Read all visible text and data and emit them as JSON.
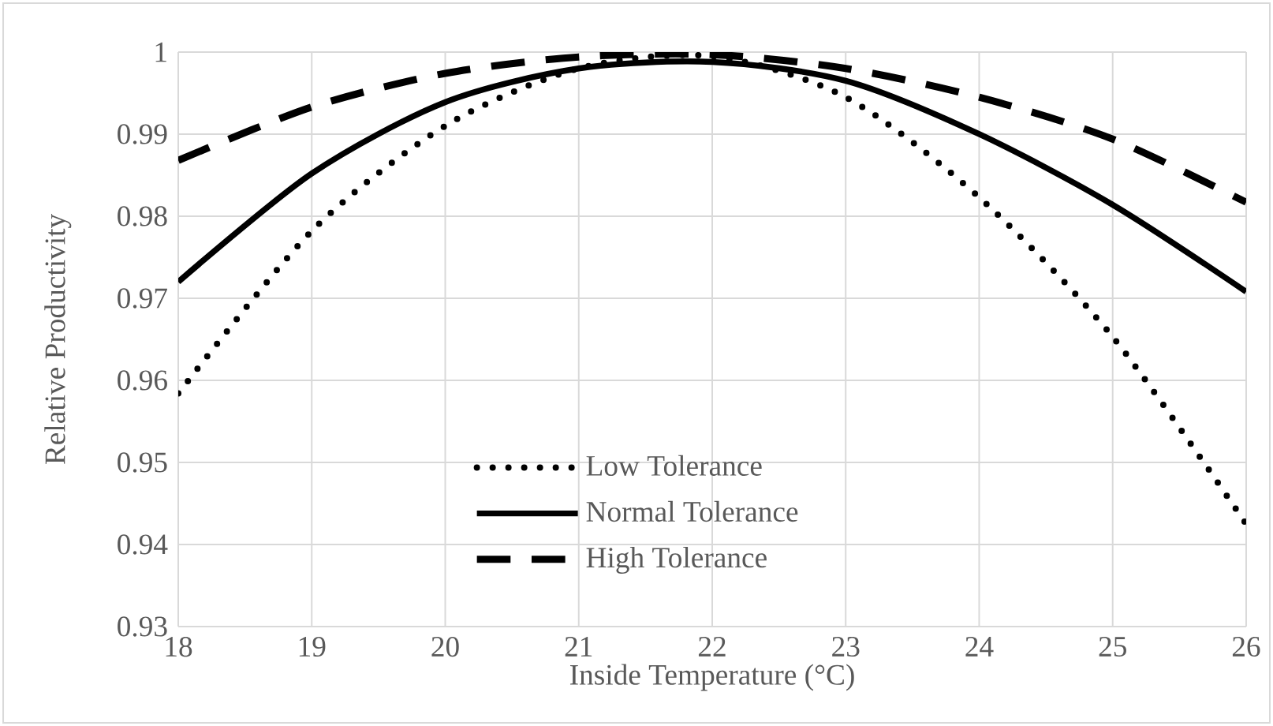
{
  "chart_data": {
    "type": "line",
    "xlabel": "Inside Temperature (°C)",
    "ylabel": "Relative Productivity",
    "x": [
      18,
      19,
      20,
      21,
      22,
      23,
      24,
      25,
      26
    ],
    "series": [
      {
        "name": "Low Tolerance",
        "color": "#000000",
        "line_style": "dotted",
        "values": [
          0.9584,
          0.9782,
          0.991,
          0.998,
          0.9995,
          0.9945,
          0.9823,
          0.9653,
          0.9425
        ]
      },
      {
        "name": "Normal Tolerance",
        "color": "#000000",
        "line_style": "solid",
        "values": [
          0.972,
          0.9852,
          0.9939,
          0.998,
          0.9988,
          0.9965,
          0.99,
          0.9814,
          0.9708
        ]
      },
      {
        "name": "High Tolerance",
        "color": "#000000",
        "line_style": "dashed",
        "values": [
          0.9868,
          0.9933,
          0.9974,
          0.9994,
          0.9997,
          0.998,
          0.9945,
          0.9894,
          0.9817
        ]
      }
    ],
    "xlim": [
      18,
      26
    ],
    "ylim": [
      0.93,
      1
    ],
    "xticks": [
      18,
      19,
      20,
      21,
      22,
      23,
      24,
      25,
      26
    ],
    "yticks": [
      0.93,
      0.94,
      0.95,
      0.96,
      0.97,
      0.98,
      0.99,
      1
    ],
    "grid": true,
    "legend": "bottom",
    "marker": "none"
  }
}
